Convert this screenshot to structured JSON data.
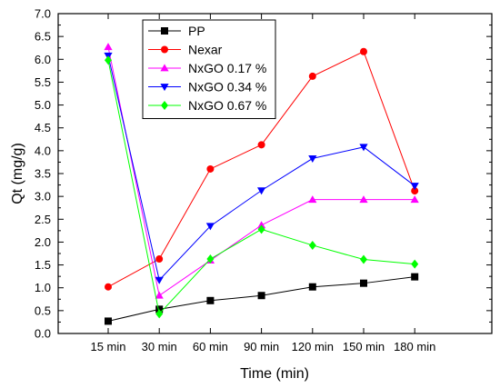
{
  "chart_data": {
    "type": "line",
    "categories": [
      "15 min",
      "30 min",
      "60 min",
      "90 min",
      "120 min",
      "150 min",
      "180 min"
    ],
    "xlabel": "Time (min)",
    "ylabel": "Qt (mg/g)",
    "ylim": [
      0,
      7
    ],
    "yticks": [
      "0.0",
      "0.5",
      "1.0",
      "1.5",
      "2.0",
      "2.5",
      "3.0",
      "3.5",
      "4.0",
      "4.5",
      "5.0",
      "5.5",
      "6.0",
      "6.5",
      "7.0"
    ],
    "grid": false,
    "legend_position": "top-left",
    "series": [
      {
        "name": "PP",
        "color": "#000000",
        "marker": "square",
        "values": [
          0.27,
          0.53,
          0.72,
          0.83,
          1.02,
          1.1,
          1.24
        ]
      },
      {
        "name": "Nexar",
        "color": "#ff0000",
        "marker": "circle",
        "values": [
          1.02,
          1.63,
          3.6,
          4.13,
          5.63,
          6.17,
          3.12
        ]
      },
      {
        "name": "NxGO 0.17 %",
        "color": "#ff00ff",
        "marker": "triangle-up",
        "values": [
          6.27,
          0.83,
          1.6,
          2.37,
          2.93,
          2.93,
          2.93
        ]
      },
      {
        "name": "NxGO 0.34 %",
        "color": "#0000ff",
        "marker": "triangle-down",
        "values": [
          6.08,
          1.17,
          2.35,
          3.13,
          3.83,
          4.08,
          3.23
        ]
      },
      {
        "name": "NxGO 0.67 %",
        "color": "#00ff00",
        "marker": "diamond",
        "values": [
          5.98,
          0.43,
          1.63,
          2.28,
          1.93,
          1.62,
          1.52
        ]
      }
    ]
  }
}
